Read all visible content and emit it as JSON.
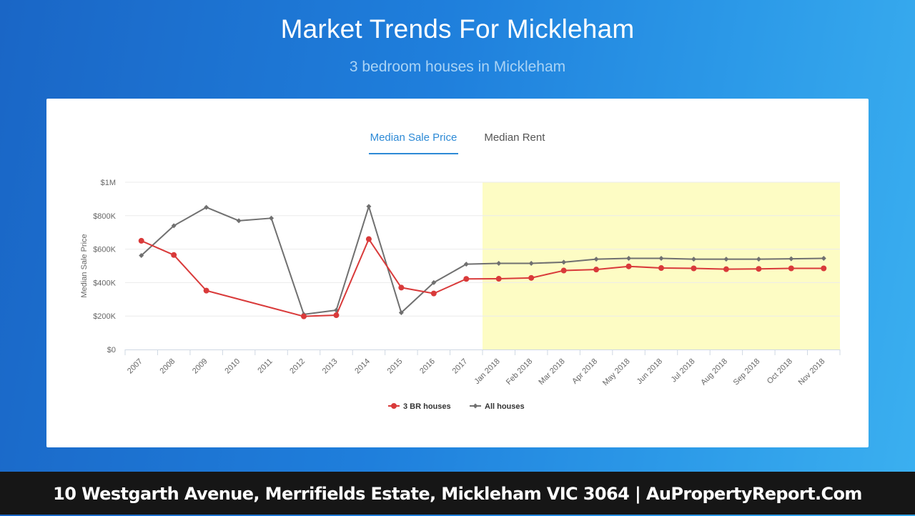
{
  "header": {
    "title": "Market Trends For Mickleham",
    "subtitle": "3 bedroom houses in Mickleham"
  },
  "tabs": [
    {
      "label": "Median Sale Price",
      "active": true
    },
    {
      "label": "Median Rent",
      "active": false
    }
  ],
  "colors": {
    "series_3br": "#d93a3a",
    "series_all": "#707070",
    "highlight": "#fdfcc4",
    "accent": "#2d8ad6"
  },
  "chart_data": {
    "type": "line",
    "xlabel": "",
    "ylabel": "Median Sale Price",
    "ylim": [
      0,
      1000000
    ],
    "yticks": [
      {
        "value": 0,
        "label": "$0"
      },
      {
        "value": 200000,
        "label": "$200K"
      },
      {
        "value": 400000,
        "label": "$400K"
      },
      {
        "value": 600000,
        "label": "$600K"
      },
      {
        "value": 800000,
        "label": "$800K"
      },
      {
        "value": 1000000,
        "label": "$1M"
      }
    ],
    "categories": [
      "2007",
      "2008",
      "2009",
      "2010",
      "2011",
      "2012",
      "2013",
      "2014",
      "2015",
      "2016",
      "2017",
      "Jan 2018",
      "Feb 2018",
      "Mar 2018",
      "Apr 2018",
      "May 2018",
      "Jun 2018",
      "Jul 2018",
      "Aug 2018",
      "Sep 2018",
      "Oct 2018",
      "Nov 2018"
    ],
    "highlight_range": [
      "Jan 2018",
      "Nov 2018"
    ],
    "grid": true,
    "legend_position": "bottom-center",
    "series": [
      {
        "name": "3 BR houses",
        "marker": "circle",
        "values": [
          650000,
          565000,
          352000,
          null,
          null,
          198000,
          205000,
          660000,
          370000,
          335000,
          422000,
          423000,
          428000,
          472000,
          478000,
          497000,
          487000,
          485000,
          480000,
          482000,
          485000,
          485000
        ]
      },
      {
        "name": "All houses",
        "marker": "diamond",
        "values": [
          562000,
          740000,
          850000,
          770000,
          785000,
          210000,
          235000,
          855000,
          220000,
          400000,
          510000,
          515000,
          515000,
          522000,
          540000,
          545000,
          545000,
          540000,
          540000,
          540000,
          542000,
          545000
        ]
      }
    ]
  },
  "footer": {
    "text": "10 Westgarth Avenue, Merrifields Estate, Mickleham VIC 3064 | AuPropertyReport.Com"
  }
}
